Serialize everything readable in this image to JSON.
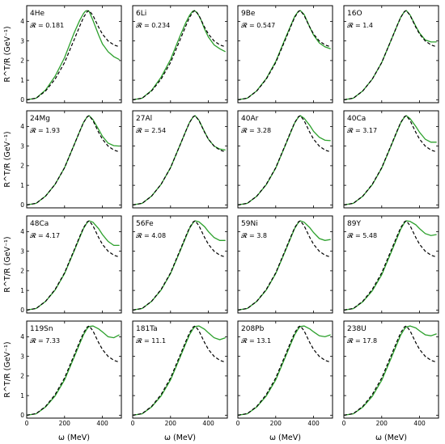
{
  "figure": {
    "ylabel": "R^T/R (GeV⁻¹)",
    "xlabel": "ω (MeV)",
    "r_symbol": "𝓡 = "
  },
  "chart_data": {
    "type": "line",
    "layout": "4x4 grid of panels",
    "x_range": [
      0,
      500
    ],
    "y_range": [
      -0.15,
      4.8
    ],
    "x_ticks": [
      0,
      200,
      400
    ],
    "y_ticks": [
      0,
      1,
      2,
      3,
      4
    ],
    "xlabel": "ω (MeV)",
    "ylabel": "R^T/R (GeV⁻¹)",
    "series_styles": [
      {
        "color": "#2ca02c",
        "dash": "solid"
      },
      {
        "color": "#000000",
        "dash": "dashed"
      }
    ],
    "reference_curve": {
      "x": [
        0,
        50,
        100,
        150,
        200,
        250,
        280,
        300,
        320,
        330,
        350,
        380,
        400,
        430,
        460,
        490
      ],
      "y": [
        0,
        0.08,
        0.45,
        1.05,
        1.9,
        3.05,
        3.75,
        4.2,
        4.5,
        4.55,
        4.3,
        3.7,
        3.35,
        3.0,
        2.8,
        2.7
      ]
    },
    "panels": [
      {
        "nucleus": "4He",
        "R": "0.181",
        "green": {
          "x": [
            0,
            50,
            100,
            150,
            200,
            250,
            280,
            300,
            310,
            320,
            330,
            350,
            380,
            400,
            430,
            460,
            490
          ],
          "y": [
            0,
            0.08,
            0.5,
            1.2,
            2.15,
            3.4,
            4.05,
            4.4,
            4.52,
            4.55,
            4.5,
            4.05,
            3.3,
            2.85,
            2.45,
            2.2,
            2.05
          ]
        }
      },
      {
        "nucleus": "6Li",
        "R": "0.234",
        "green": {
          "x": [
            0,
            50,
            100,
            150,
            200,
            250,
            280,
            300,
            315,
            325,
            340,
            360,
            380,
            400,
            430,
            460,
            490
          ],
          "y": [
            0,
            0.08,
            0.48,
            1.15,
            2.05,
            3.25,
            3.92,
            4.3,
            4.5,
            4.55,
            4.45,
            4.1,
            3.6,
            3.2,
            2.8,
            2.6,
            2.45
          ]
        }
      },
      {
        "nucleus": "9Be",
        "R": "0.547",
        "green": {
          "x": [
            0,
            50,
            100,
            150,
            200,
            250,
            280,
            300,
            320,
            330,
            350,
            380,
            400,
            430,
            460,
            490
          ],
          "y": [
            0,
            0.08,
            0.46,
            1.08,
            1.95,
            3.12,
            3.8,
            4.25,
            4.52,
            4.55,
            4.35,
            3.7,
            3.3,
            2.9,
            2.7,
            2.6
          ]
        }
      },
      {
        "nucleus": "16O",
        "R": "1.4",
        "green": {
          "x": [
            0,
            50,
            100,
            150,
            200,
            250,
            280,
            300,
            320,
            330,
            350,
            380,
            400,
            430,
            460,
            490
          ],
          "y": [
            0,
            0.08,
            0.45,
            1.05,
            1.9,
            3.05,
            3.75,
            4.2,
            4.5,
            4.55,
            4.32,
            3.75,
            3.4,
            3.05,
            2.95,
            2.95
          ]
        }
      },
      {
        "nucleus": "24Mg",
        "R": "1.93",
        "green": {
          "x": [
            0,
            50,
            100,
            150,
            200,
            250,
            280,
            300,
            320,
            330,
            350,
            380,
            400,
            430,
            460,
            490
          ],
          "y": [
            0,
            0.08,
            0.45,
            1.05,
            1.9,
            3.05,
            3.75,
            4.2,
            4.5,
            4.55,
            4.35,
            3.85,
            3.5,
            3.15,
            3.02,
            3.0
          ]
        }
      },
      {
        "nucleus": "27Al",
        "R": "2.54",
        "green": {
          "x": [
            0,
            50,
            100,
            150,
            200,
            250,
            280,
            300,
            320,
            330,
            350,
            380,
            400,
            430,
            460,
            490
          ],
          "y": [
            0,
            0.08,
            0.45,
            1.05,
            1.9,
            3.05,
            3.75,
            4.2,
            4.5,
            4.55,
            4.32,
            3.72,
            3.35,
            3.0,
            2.85,
            2.8
          ]
        }
      },
      {
        "nucleus": "40Ar",
        "R": "3.28",
        "green": {
          "x": [
            0,
            50,
            100,
            150,
            200,
            250,
            280,
            300,
            320,
            330,
            350,
            380,
            400,
            430,
            460,
            490
          ],
          "y": [
            0,
            0.08,
            0.44,
            1.03,
            1.88,
            3.02,
            3.72,
            4.18,
            4.48,
            4.55,
            4.42,
            4.05,
            3.75,
            3.45,
            3.3,
            3.28
          ]
        }
      },
      {
        "nucleus": "40Ca",
        "R": "3.17",
        "green": {
          "x": [
            0,
            50,
            100,
            150,
            200,
            250,
            280,
            300,
            320,
            330,
            350,
            380,
            400,
            430,
            460,
            490
          ],
          "y": [
            0,
            0.08,
            0.44,
            1.03,
            1.88,
            3.02,
            3.72,
            4.18,
            4.48,
            4.55,
            4.4,
            4.0,
            3.7,
            3.35,
            3.2,
            3.2
          ]
        }
      },
      {
        "nucleus": "48Ca",
        "R": "4.17",
        "green": {
          "x": [
            0,
            50,
            100,
            150,
            200,
            250,
            280,
            300,
            320,
            330,
            350,
            380,
            400,
            430,
            460,
            490
          ],
          "y": [
            0,
            0.08,
            0.44,
            1.02,
            1.86,
            3.0,
            3.7,
            4.16,
            4.47,
            4.55,
            4.48,
            4.15,
            3.85,
            3.5,
            3.3,
            3.3
          ]
        }
      },
      {
        "nucleus": "56Fe",
        "R": "4.08",
        "green": {
          "x": [
            0,
            50,
            100,
            150,
            200,
            250,
            280,
            300,
            320,
            330,
            350,
            380,
            400,
            430,
            460,
            490
          ],
          "y": [
            0,
            0.08,
            0.44,
            1.02,
            1.86,
            3.0,
            3.7,
            4.16,
            4.47,
            4.55,
            4.5,
            4.25,
            4.0,
            3.7,
            3.55,
            3.55
          ]
        }
      },
      {
        "nucleus": "59Ni",
        "R": "3.8",
        "green": {
          "x": [
            0,
            50,
            100,
            150,
            200,
            250,
            280,
            300,
            320,
            330,
            350,
            380,
            400,
            430,
            460,
            490
          ],
          "y": [
            0,
            0.08,
            0.44,
            1.02,
            1.86,
            3.0,
            3.7,
            4.16,
            4.47,
            4.55,
            4.48,
            4.2,
            3.95,
            3.65,
            3.55,
            3.6
          ]
        }
      },
      {
        "nucleus": "89Y",
        "R": "5.48",
        "green": {
          "x": [
            0,
            50,
            100,
            150,
            200,
            250,
            280,
            300,
            320,
            330,
            350,
            380,
            400,
            430,
            460,
            490
          ],
          "y": [
            0,
            0.07,
            0.42,
            0.98,
            1.8,
            2.95,
            3.65,
            4.12,
            4.45,
            4.55,
            4.52,
            4.35,
            4.15,
            3.9,
            3.8,
            3.85
          ]
        }
      },
      {
        "nucleus": "119Sn",
        "R": "7.33",
        "green": {
          "x": [
            0,
            50,
            100,
            150,
            200,
            250,
            280,
            300,
            320,
            330,
            350,
            380,
            400,
            430,
            460,
            490
          ],
          "y": [
            0,
            0.07,
            0.42,
            0.98,
            1.8,
            2.95,
            3.65,
            4.1,
            4.43,
            4.52,
            4.55,
            4.4,
            4.25,
            4.0,
            3.95,
            4.1
          ]
        }
      },
      {
        "nucleus": "181Ta",
        "R": "11.1",
        "green": {
          "x": [
            0,
            50,
            100,
            150,
            200,
            250,
            280,
            300,
            320,
            330,
            350,
            380,
            400,
            430,
            460,
            490
          ],
          "y": [
            0,
            0.07,
            0.42,
            0.98,
            1.8,
            2.95,
            3.65,
            4.1,
            4.42,
            4.52,
            4.55,
            4.38,
            4.2,
            3.95,
            3.85,
            3.95
          ]
        }
      },
      {
        "nucleus": "208Pb",
        "R": "13.1",
        "green": {
          "x": [
            0,
            50,
            100,
            150,
            200,
            250,
            280,
            300,
            320,
            330,
            350,
            380,
            400,
            430,
            460,
            490
          ],
          "y": [
            0,
            0.07,
            0.42,
            0.98,
            1.8,
            2.95,
            3.65,
            4.1,
            4.42,
            4.52,
            4.55,
            4.4,
            4.25,
            4.05,
            4.0,
            4.1
          ]
        }
      },
      {
        "nucleus": "238U",
        "R": "17.8",
        "green": {
          "x": [
            0,
            50,
            100,
            150,
            200,
            250,
            280,
            300,
            320,
            330,
            350,
            380,
            400,
            430,
            460,
            490
          ],
          "y": [
            0,
            0.07,
            0.41,
            0.96,
            1.78,
            2.92,
            3.62,
            4.08,
            4.4,
            4.5,
            4.55,
            4.45,
            4.3,
            4.1,
            4.05,
            4.15
          ]
        }
      }
    ]
  }
}
